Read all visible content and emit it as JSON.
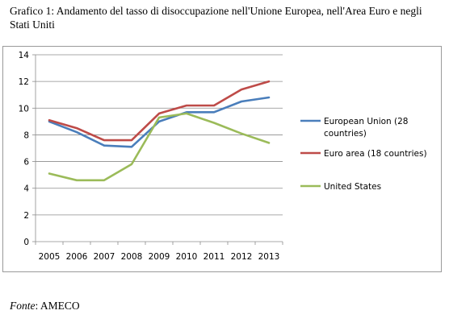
{
  "title": "Grafico 1: Andamento del tasso di disoccupazione nell'Unione Europea, nell'Area Euro e negli Stati Uniti",
  "source": {
    "label": "Fonte",
    "value": ": AMECO"
  },
  "chart_data": {
    "type": "line",
    "title": "",
    "xlabel": "",
    "ylabel": "",
    "categories": [
      "2005",
      "2006",
      "2007",
      "2008",
      "2009",
      "2010",
      "2011",
      "2012",
      "2013"
    ],
    "ylim": [
      0,
      14
    ],
    "yticks": [
      0,
      2,
      4,
      6,
      8,
      10,
      12,
      14
    ],
    "grid": "horizontal",
    "legend_position": "right",
    "series": [
      {
        "name": "European Union (28 countries)",
        "color": "#4a7ebb",
        "values": [
          9.0,
          8.2,
          7.2,
          7.1,
          9.0,
          9.7,
          9.7,
          10.5,
          10.8
        ]
      },
      {
        "name": "Euro area (18 countries)",
        "color": "#be4b48",
        "values": [
          9.1,
          8.5,
          7.6,
          7.6,
          9.6,
          10.2,
          10.2,
          11.4,
          12.0
        ]
      },
      {
        "name": "United States",
        "color": "#9bbb59",
        "values": [
          5.1,
          4.6,
          4.6,
          5.8,
          9.3,
          9.6,
          8.9,
          8.1,
          7.4
        ]
      }
    ]
  }
}
